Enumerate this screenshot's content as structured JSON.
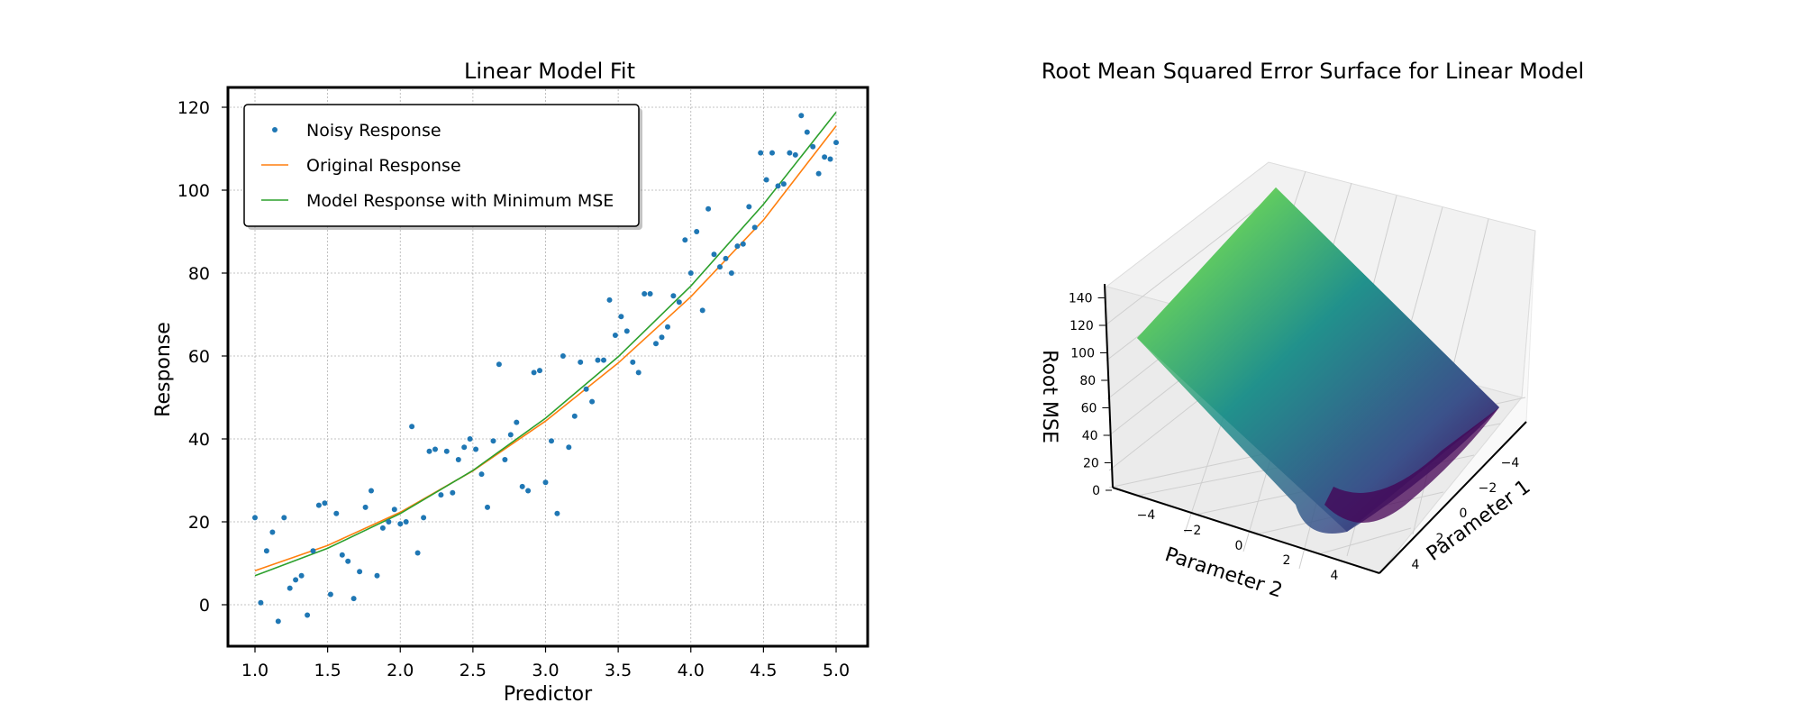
{
  "chart_data": [
    {
      "type": "scatter",
      "title": "Linear Model Fit",
      "xlabel": "Predictor",
      "ylabel": "Response",
      "xlim": [
        0.8,
        5.2
      ],
      "ylim": [
        -10,
        125
      ],
      "grid": true,
      "legend_placement": "top-left",
      "x_ticks": [
        "1.0",
        "1.5",
        "2.0",
        "2.5",
        "3.0",
        "3.5",
        "4.0",
        "4.5",
        "5.0"
      ],
      "y_ticks": [
        "0",
        "20",
        "40",
        "60",
        "80",
        "100",
        "120"
      ],
      "series": [
        {
          "name": "Noisy Response",
          "kind": "scatter",
          "color": "#1f77b4",
          "x": [
            1.0,
            1.04,
            1.08,
            1.12,
            1.16,
            1.2,
            1.24,
            1.28,
            1.32,
            1.36,
            1.4,
            1.44,
            1.48,
            1.52,
            1.56,
            1.6,
            1.64,
            1.68,
            1.72,
            1.76,
            1.8,
            1.84,
            1.88,
            1.92,
            1.96,
            2.0,
            2.04,
            2.08,
            2.12,
            2.16,
            2.2,
            2.24,
            2.28,
            2.32,
            2.36,
            2.4,
            2.44,
            2.48,
            2.52,
            2.56,
            2.6,
            2.64,
            2.68,
            2.72,
            2.76,
            2.8,
            2.84,
            2.88,
            2.92,
            2.96,
            3.0,
            3.04,
            3.08,
            3.12,
            3.16,
            3.2,
            3.24,
            3.28,
            3.32,
            3.36,
            3.4,
            3.44,
            3.48,
            3.52,
            3.56,
            3.6,
            3.64,
            3.68,
            3.72,
            3.76,
            3.8,
            3.84,
            3.88,
            3.92,
            3.96,
            4.0,
            4.04,
            4.08,
            4.12,
            4.16,
            4.2,
            4.24,
            4.28,
            4.32,
            4.36,
            4.4,
            4.44,
            4.48,
            4.52,
            4.56,
            4.6,
            4.64,
            4.68,
            4.72,
            4.76,
            4.8,
            4.84,
            4.88,
            4.92,
            4.96,
            5.0
          ],
          "y": [
            21,
            0.5,
            13,
            17.5,
            -4,
            21,
            4,
            6,
            7,
            -2.5,
            13,
            24,
            24.5,
            2.5,
            22,
            12,
            10.5,
            1.5,
            8,
            23.5,
            27.5,
            7,
            18.5,
            20,
            23,
            19.5,
            20,
            43,
            12.5,
            21,
            37,
            37.5,
            26.5,
            37,
            27,
            35,
            38,
            40,
            37.5,
            31.5,
            23.5,
            39.5,
            58,
            35,
            41,
            44,
            28.5,
            27.5,
            56,
            56.5,
            29.5,
            39.5,
            22,
            60,
            38,
            45.5,
            58.5,
            52,
            49,
            59,
            59,
            73.5,
            65,
            69.5,
            66,
            58.5,
            56,
            75,
            75,
            63,
            64.5,
            67,
            74.5,
            73,
            88,
            80,
            90,
            71,
            95.5,
            84.5,
            81.5,
            83.5,
            80,
            86.5,
            87,
            96,
            91,
            109,
            102.5,
            109,
            101,
            101.5,
            109,
            108.5,
            118,
            114,
            110.5,
            104,
            108,
            107.5,
            111.5
          ]
        },
        {
          "name": "Original Response",
          "kind": "line",
          "color": "#ff7f0e",
          "x": [
            1.0,
            1.5,
            2.0,
            2.5,
            3.0,
            3.5,
            4.0,
            4.5,
            5.0
          ],
          "y": [
            8.2,
            14.3,
            22.3,
            32.3,
            44.3,
            58.3,
            74.3,
            92.8,
            115.5
          ]
        },
        {
          "name": "Model Response with Minimum MSE",
          "kind": "line",
          "color": "#2ca02c",
          "x": [
            1.0,
            1.5,
            2.0,
            2.5,
            3.0,
            3.5,
            4.0,
            4.5,
            5.0
          ],
          "y": [
            7.0,
            13.6,
            22.0,
            32.4,
            45.0,
            59.8,
            76.9,
            96.6,
            118.8
          ]
        }
      ]
    },
    {
      "type": "surface",
      "title": "Root Mean Squared Error Surface for Linear Model",
      "xlabel": "Parameter 1",
      "ylabel": "Parameter 2",
      "zlabel": "Root MSE",
      "xlim": [
        -5,
        5
      ],
      "ylim": [
        -5,
        5
      ],
      "zlim": [
        0,
        140
      ],
      "colormap": "viridis",
      "x_ticks": [
        "−4",
        "−2",
        "0",
        "2",
        "4"
      ],
      "y_ticks": [
        "−4",
        "−2",
        "0",
        "2",
        "4"
      ],
      "z_ticks": [
        "0",
        "20",
        "40",
        "60",
        "80",
        "100",
        "120",
        "140"
      ]
    }
  ]
}
